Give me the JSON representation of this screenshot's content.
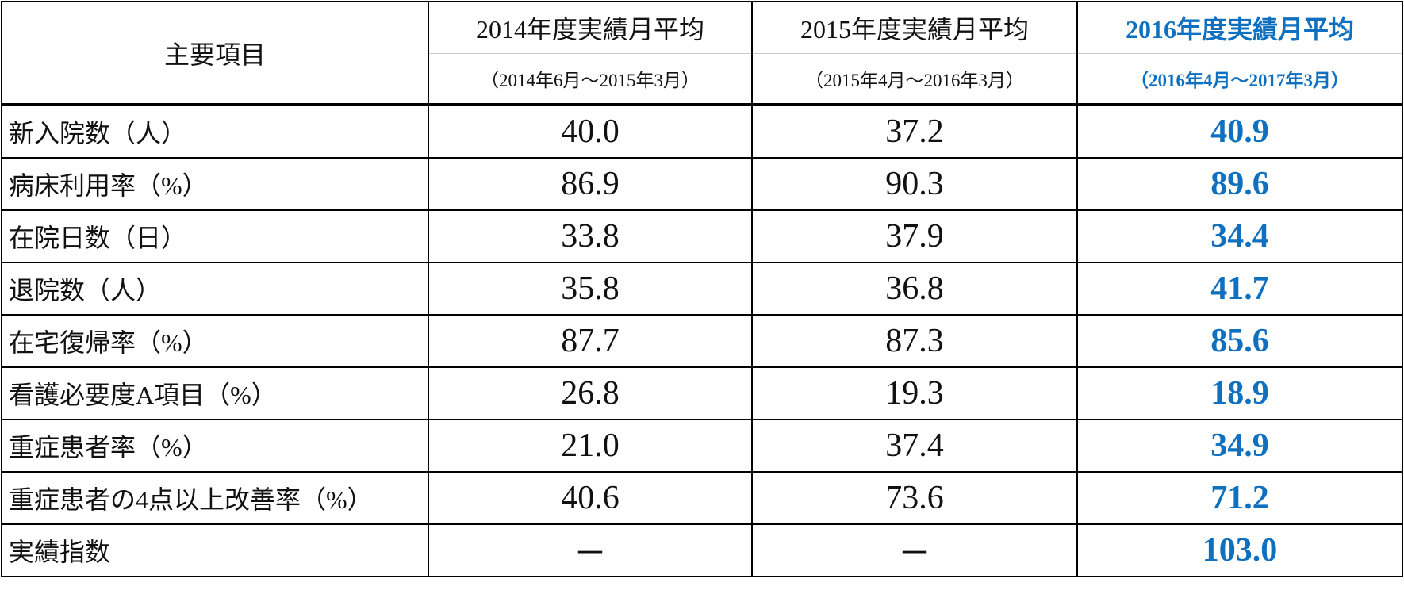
{
  "table": {
    "header": {
      "label": "主要項目",
      "columns": [
        {
          "title": "2014年度実績月平均",
          "period": "（2014年6月～2015年3月）"
        },
        {
          "title": "2015年度実績月平均",
          "period": "（2015年4月～2016年3月）"
        },
        {
          "title": "2016年度実績月平均",
          "period": "（2016年4月～2017年3月）"
        }
      ]
    },
    "rows": [
      {
        "label": "新入院数（人）",
        "values": [
          "40.0",
          "37.2",
          "40.9"
        ]
      },
      {
        "label": "病床利用率（%）",
        "values": [
          "86.9",
          "90.3",
          "89.6"
        ]
      },
      {
        "label": "在院日数（日）",
        "values": [
          "33.8",
          "37.9",
          "34.4"
        ]
      },
      {
        "label": "退院数（人）",
        "values": [
          "35.8",
          "36.8",
          "41.7"
        ]
      },
      {
        "label": "在宅復帰率（%）",
        "values": [
          "87.7",
          "87.3",
          "85.6"
        ]
      },
      {
        "label": "看護必要度A項目（%）",
        "values": [
          "26.8",
          "19.3",
          "18.9"
        ]
      },
      {
        "label": "重症患者率（%）",
        "values": [
          "21.0",
          "37.4",
          "34.9"
        ]
      },
      {
        "label": "重症患者の4点以上改善率（%）",
        "values": [
          "40.6",
          "73.6",
          "71.2"
        ]
      },
      {
        "label": "実績指数",
        "values": [
          "－",
          "－",
          "103.0"
        ]
      }
    ]
  }
}
